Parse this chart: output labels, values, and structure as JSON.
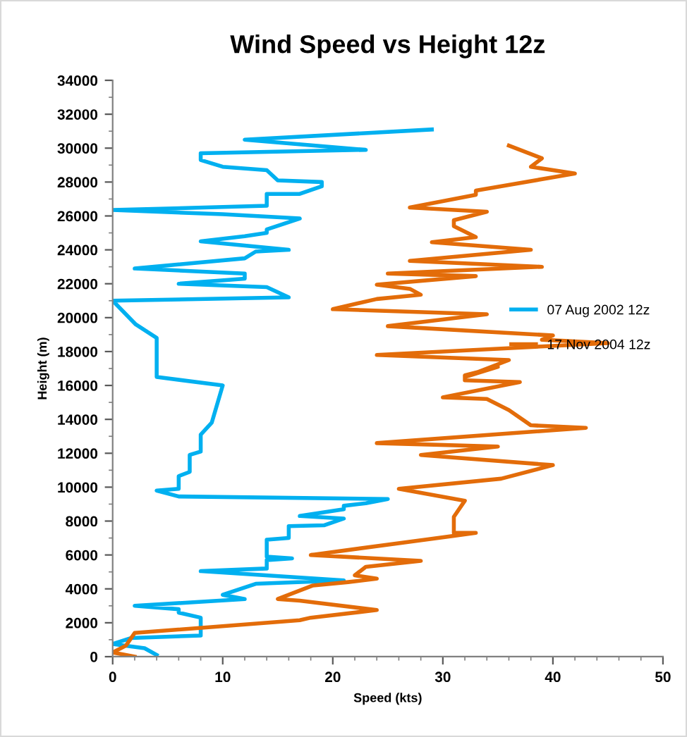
{
  "chart_data": {
    "type": "line",
    "title": "Wind Speed vs Height 12z",
    "xlabel": "Speed (kts)",
    "ylabel": "Height (m)",
    "xlim": [
      0,
      50
    ],
    "xticks": [
      0,
      10,
      20,
      30,
      40,
      50
    ],
    "ylim": [
      0,
      34000
    ],
    "yticks": [
      0,
      2000,
      4000,
      6000,
      8000,
      10000,
      12000,
      14000,
      16000,
      18000,
      20000,
      22000,
      24000,
      26000,
      28000,
      30000,
      32000,
      34000
    ],
    "grid": false,
    "legend": "right",
    "marker": "none",
    "line_style": "solid",
    "series": [
      {
        "name": "07 Aug 2002 12z",
        "color": "#00b0f0",
        "x": [
          4,
          2.9,
          0,
          1.7,
          8,
          8,
          6,
          6,
          2,
          12,
          10,
          13,
          21,
          8,
          14,
          14,
          16.3,
          14,
          14,
          16,
          16,
          19.2,
          21,
          17,
          21,
          21,
          23,
          25,
          6,
          4,
          6,
          6,
          7,
          7,
          8,
          8,
          9,
          10,
          4,
          4,
          2.1,
          0,
          16,
          14,
          6,
          12,
          12,
          2,
          12,
          13,
          16,
          8,
          12,
          14,
          14,
          17,
          10,
          0,
          14,
          14,
          17,
          19,
          19,
          15,
          14,
          10,
          8,
          8,
          23,
          12,
          29
        ],
        "values": [
          100,
          500,
          750,
          1100,
          1250,
          2300,
          2600,
          2800,
          3000,
          3400,
          3650,
          4300,
          4500,
          5050,
          5200,
          5700,
          5800,
          5900,
          6900,
          7000,
          7700,
          7750,
          8150,
          8300,
          8700,
          8900,
          9050,
          9300,
          9450,
          9800,
          9900,
          10650,
          10900,
          11900,
          12100,
          13100,
          13800,
          16000,
          16500,
          18800,
          19600,
          21000,
          21200,
          21800,
          22000,
          22300,
          22600,
          22900,
          23500,
          23900,
          24000,
          24500,
          24800,
          25000,
          25200,
          25850,
          26100,
          26350,
          26600,
          27300,
          27300,
          27750,
          28000,
          28100,
          28700,
          28900,
          29300,
          29700,
          29900,
          30500,
          31100
        ]
      },
      {
        "name": "17 Nov 2004 12z",
        "color": "#e36c09",
        "x": [
          2,
          0,
          1.2,
          2,
          17,
          18,
          24,
          17,
          15,
          18.2,
          21.4,
          24,
          22,
          23,
          28,
          18,
          33,
          31,
          31,
          32,
          26,
          35.3,
          40,
          28,
          35,
          24,
          43,
          38,
          36,
          34,
          30,
          37,
          32,
          32,
          35,
          32,
          36,
          24,
          45,
          39,
          40,
          25,
          34,
          20,
          24,
          28,
          27,
          24,
          33,
          25,
          39,
          27,
          38,
          29,
          33,
          31,
          31,
          34,
          27,
          33,
          33,
          42,
          38,
          39,
          36
        ],
        "values": [
          0,
          250,
          650,
          1400,
          2150,
          2300,
          2750,
          3300,
          3400,
          4200,
          4400,
          4600,
          4800,
          5300,
          5650,
          6000,
          7300,
          7300,
          8250,
          9200,
          9900,
          10500,
          11300,
          11900,
          12400,
          12600,
          13500,
          13650,
          14550,
          15200,
          15300,
          16200,
          16300,
          16600,
          17100,
          16500,
          17500,
          17800,
          18500,
          18700,
          18950,
          19500,
          20200,
          20500,
          21100,
          21350,
          21700,
          21950,
          22450,
          22600,
          23000,
          23350,
          24000,
          24450,
          24750,
          25400,
          25750,
          26250,
          26500,
          27250,
          27500,
          28500,
          28900,
          29400,
          30150
        ]
      }
    ]
  }
}
